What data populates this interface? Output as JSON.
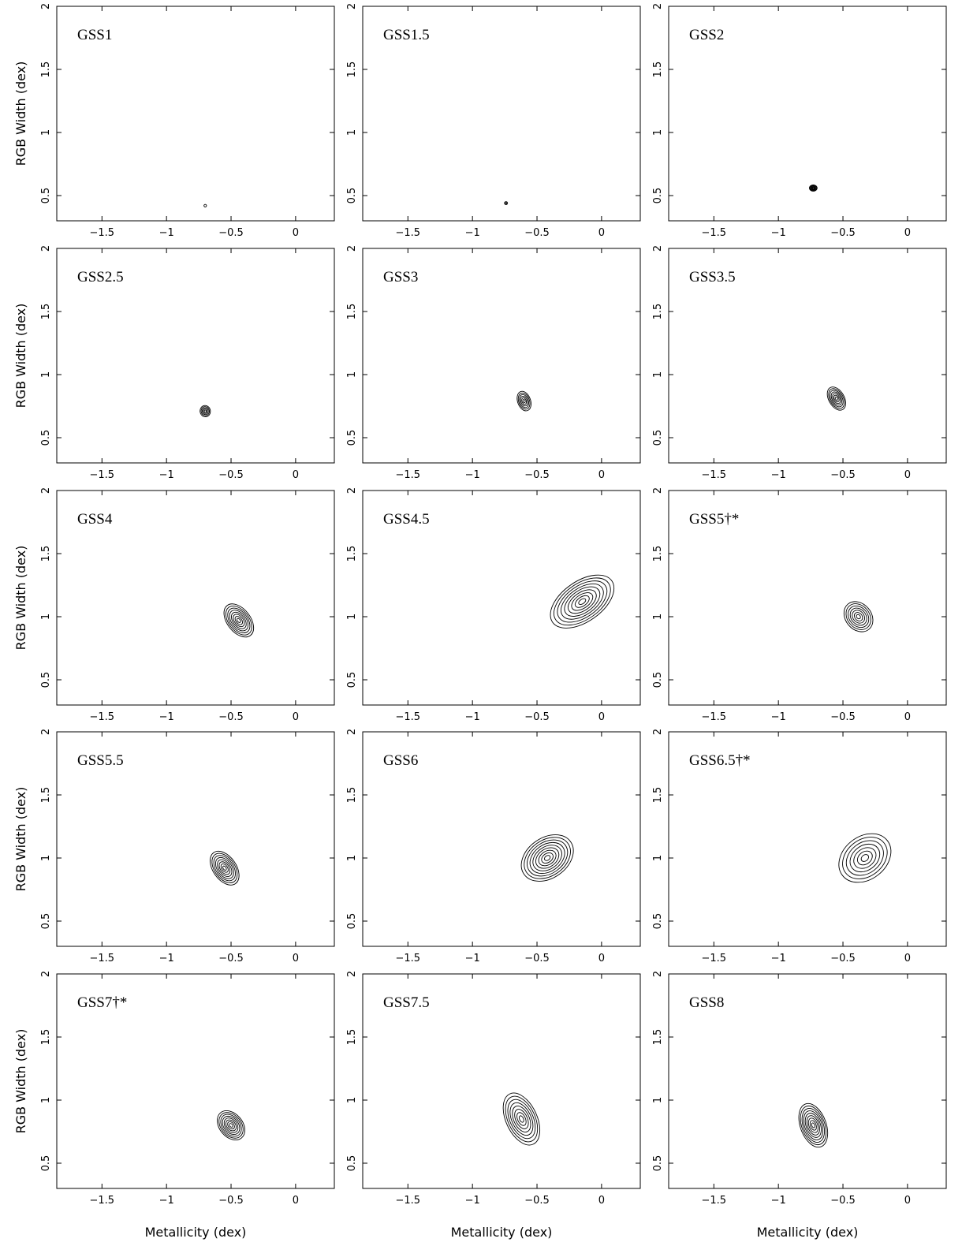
{
  "figure": {
    "xlabel": "Metallicity (dex)",
    "ylabel": "RGB Width (dex)"
  },
  "chart_data": [
    {
      "type": "contour",
      "label": "GSS1",
      "xlim": [
        -1.85,
        0.3
      ],
      "ylim": [
        0.3,
        2.0
      ],
      "xticks": [
        -1.5,
        -1,
        -0.5,
        0
      ],
      "yticks": [
        0.5,
        1,
        1.5,
        2
      ],
      "peak": {
        "x": -0.7,
        "y": 0.42
      },
      "spread": {
        "x": 0.01,
        "y": 0.01
      },
      "tilt": 0,
      "levels": 1
    },
    {
      "type": "contour",
      "label": "GSS1.5",
      "xlim": [
        -1.85,
        0.3
      ],
      "ylim": [
        0.3,
        2.0
      ],
      "xticks": [
        -1.5,
        -1,
        -0.5,
        0
      ],
      "yticks": [
        0.5,
        1,
        1.5,
        2
      ],
      "peak": {
        "x": -0.74,
        "y": 0.44
      },
      "spread": {
        "x": 0.012,
        "y": 0.012
      },
      "tilt": 0,
      "levels": 2
    },
    {
      "type": "contour",
      "label": "GSS2",
      "xlim": [
        -1.85,
        0.3
      ],
      "ylim": [
        0.3,
        2.0
      ],
      "xticks": [
        -1.5,
        -1,
        -0.5,
        0
      ],
      "yticks": [
        0.5,
        1,
        1.5,
        2
      ],
      "peak": {
        "x": -0.73,
        "y": 0.56
      },
      "spread": {
        "x": 0.03,
        "y": 0.025
      },
      "tilt": 0,
      "levels": 6
    },
    {
      "type": "contour",
      "label": "GSS2.5",
      "xlim": [
        -1.85,
        0.3
      ],
      "ylim": [
        0.3,
        2.0
      ],
      "xticks": [
        -1.5,
        -1,
        -0.5,
        0
      ],
      "yticks": [
        0.5,
        1,
        1.5,
        2
      ],
      "peak": {
        "x": -0.7,
        "y": 0.71
      },
      "spread": {
        "x": 0.04,
        "y": 0.045
      },
      "tilt": 10,
      "levels": 5
    },
    {
      "type": "contour",
      "label": "GSS3",
      "xlim": [
        -1.85,
        0.3
      ],
      "ylim": [
        0.3,
        2.0
      ],
      "xticks": [
        -1.5,
        -1,
        -0.5,
        0
      ],
      "yticks": [
        0.5,
        1,
        1.5,
        2
      ],
      "peak": {
        "x": -0.6,
        "y": 0.79
      },
      "spread": {
        "x": 0.05,
        "y": 0.08
      },
      "tilt": 20,
      "levels": 6
    },
    {
      "type": "contour",
      "label": "GSS3.5",
      "xlim": [
        -1.85,
        0.3
      ],
      "ylim": [
        0.3,
        2.0
      ],
      "xticks": [
        -1.5,
        -1,
        -0.5,
        0
      ],
      "yticks": [
        0.5,
        1,
        1.5,
        2
      ],
      "peak": {
        "x": -0.55,
        "y": 0.81
      },
      "spread": {
        "x": 0.06,
        "y": 0.1
      },
      "tilt": 30,
      "levels": 7
    },
    {
      "type": "contour",
      "label": "GSS4",
      "xlim": [
        -1.85,
        0.3
      ],
      "ylim": [
        0.3,
        2.0
      ],
      "xticks": [
        -1.5,
        -1,
        -0.5,
        0
      ],
      "yticks": [
        0.5,
        1,
        1.5,
        2
      ],
      "peak": {
        "x": -0.44,
        "y": 0.97
      },
      "spread": {
        "x": 0.09,
        "y": 0.15
      },
      "tilt": 38,
      "levels": 8
    },
    {
      "type": "contour",
      "label": "GSS4.5",
      "xlim": [
        -1.85,
        0.3
      ],
      "ylim": [
        0.3,
        2.0
      ],
      "xticks": [
        -1.5,
        -1,
        -0.5,
        0
      ],
      "yticks": [
        0.5,
        1,
        1.5,
        2
      ],
      "peak": {
        "x": -0.15,
        "y": 1.12
      },
      "spread": {
        "x": 0.28,
        "y": 0.16
      },
      "tilt": 35,
      "levels": 9
    },
    {
      "type": "contour",
      "label": "GSS5†*",
      "xlim": [
        -1.85,
        0.3
      ],
      "ylim": [
        0.3,
        2.0
      ],
      "xticks": [
        -1.5,
        -1,
        -0.5,
        0
      ],
      "yticks": [
        0.5,
        1,
        1.5,
        2
      ],
      "peak": {
        "x": -0.38,
        "y": 1.0
      },
      "spread": {
        "x": 0.1,
        "y": 0.13
      },
      "tilt": 40,
      "levels": 7
    },
    {
      "type": "contour",
      "label": "GSS5.5",
      "xlim": [
        -1.85,
        0.3
      ],
      "ylim": [
        0.3,
        2.0
      ],
      "xticks": [
        -1.5,
        -1,
        -0.5,
        0
      ],
      "yticks": [
        0.5,
        1,
        1.5,
        2
      ],
      "peak": {
        "x": -0.55,
        "y": 0.92
      },
      "spread": {
        "x": 0.09,
        "y": 0.15
      },
      "tilt": 35,
      "levels": 8
    },
    {
      "type": "contour",
      "label": "GSS6",
      "xlim": [
        -1.85,
        0.3
      ],
      "ylim": [
        0.3,
        2.0
      ],
      "xticks": [
        -1.5,
        -1,
        -0.5,
        0
      ],
      "yticks": [
        0.5,
        1,
        1.5,
        2
      ],
      "peak": {
        "x": -0.42,
        "y": 1.0
      },
      "spread": {
        "x": 0.22,
        "y": 0.16
      },
      "tilt": 35,
      "levels": 9
    },
    {
      "type": "contour",
      "label": "GSS6.5†*",
      "xlim": [
        -1.85,
        0.3
      ],
      "ylim": [
        0.3,
        2.0
      ],
      "xticks": [
        -1.5,
        -1,
        -0.5,
        0
      ],
      "yticks": [
        0.5,
        1,
        1.5,
        2
      ],
      "peak": {
        "x": -0.33,
        "y": 1.0
      },
      "spread": {
        "x": 0.22,
        "y": 0.17
      },
      "tilt": 38,
      "levels": 7
    },
    {
      "type": "contour",
      "label": "GSS7†*",
      "xlim": [
        -1.85,
        0.3
      ],
      "ylim": [
        0.3,
        2.0
      ],
      "xticks": [
        -1.5,
        -1,
        -0.5,
        0
      ],
      "yticks": [
        0.5,
        1,
        1.5,
        2
      ],
      "peak": {
        "x": -0.5,
        "y": 0.8
      },
      "spread": {
        "x": 0.09,
        "y": 0.13
      },
      "tilt": 40,
      "levels": 8
    },
    {
      "type": "contour",
      "label": "GSS7.5",
      "xlim": [
        -1.85,
        0.3
      ],
      "ylim": [
        0.3,
        2.0
      ],
      "xticks": [
        -1.5,
        -1,
        -0.5,
        0
      ],
      "yticks": [
        0.5,
        1,
        1.5,
        2
      ],
      "peak": {
        "x": -0.62,
        "y": 0.85
      },
      "spread": {
        "x": 0.12,
        "y": 0.22
      },
      "tilt": 25,
      "levels": 8
    },
    {
      "type": "contour",
      "label": "GSS8",
      "xlim": [
        -1.85,
        0.3
      ],
      "ylim": [
        0.3,
        2.0
      ],
      "xticks": [
        -1.5,
        -1,
        -0.5,
        0
      ],
      "yticks": [
        0.5,
        1,
        1.5,
        2
      ],
      "peak": {
        "x": -0.73,
        "y": 0.8
      },
      "spread": {
        "x": 0.1,
        "y": 0.18
      },
      "tilt": 20,
      "levels": 9
    }
  ]
}
